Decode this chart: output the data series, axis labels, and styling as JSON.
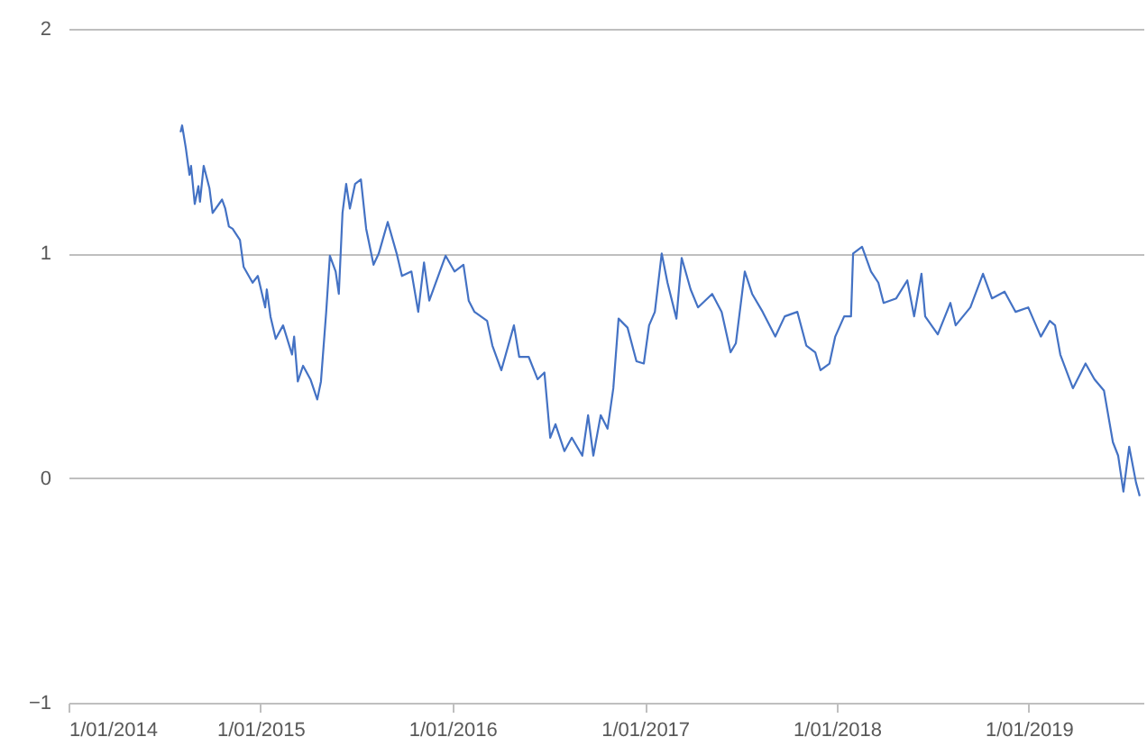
{
  "chart_data": {
    "type": "line",
    "x": [
      "2014-08-02",
      "2014-08-05",
      "2014-08-12",
      "2014-08-19",
      "2014-08-22",
      "2014-08-29",
      "2014-09-05",
      "2014-09-08",
      "2014-09-15",
      "2014-09-26",
      "2014-10-02",
      "2014-10-20",
      "2014-10-26",
      "2014-11-02",
      "2014-11-09",
      "2014-11-23",
      "2014-11-30",
      "2014-12-17",
      "2014-12-27",
      "2015-01-10",
      "2015-01-13",
      "2015-01-20",
      "2015-01-30",
      "2015-02-13",
      "2015-03-02",
      "2015-03-06",
      "2015-03-13",
      "2015-03-23",
      "2015-04-06",
      "2015-04-19",
      "2015-04-26",
      "2015-05-06",
      "2015-05-13",
      "2015-05-24",
      "2015-05-30",
      "2015-06-06",
      "2015-06-13",
      "2015-06-20",
      "2015-06-30",
      "2015-07-11",
      "2015-07-21",
      "2015-08-04",
      "2015-08-14",
      "2015-08-31",
      "2015-09-17",
      "2015-09-27",
      "2015-10-15",
      "2015-10-28",
      "2015-11-08",
      "2015-11-18",
      "2015-12-05",
      "2015-12-19",
      "2016-01-05",
      "2016-01-22",
      "2016-02-01",
      "2016-02-12",
      "2016-03-07",
      "2016-03-17",
      "2016-04-03",
      "2016-04-27",
      "2016-05-07",
      "2016-05-25",
      "2016-06-11",
      "2016-06-24",
      "2016-07-05",
      "2016-07-15",
      "2016-08-01",
      "2016-08-15",
      "2016-09-04",
      "2016-09-15",
      "2016-09-25",
      "2016-10-09",
      "2016-10-22",
      "2016-11-02",
      "2016-11-12",
      "2016-11-29",
      "2016-12-16",
      "2016-12-30",
      "2017-01-09",
      "2017-01-20",
      "2017-02-02",
      "2017-02-13",
      "2017-03-02",
      "2017-03-12",
      "2017-03-29",
      "2017-04-12",
      "2017-05-09",
      "2017-05-27",
      "2017-06-13",
      "2017-06-23",
      "2017-07-10",
      "2017-07-24",
      "2017-08-13",
      "2017-09-06",
      "2017-09-24",
      "2017-10-18",
      "2017-11-04",
      "2017-11-21",
      "2017-12-01",
      "2017-12-18",
      "2017-12-29",
      "2018-01-15",
      "2018-01-28",
      "2018-02-01",
      "2018-02-18",
      "2018-03-07",
      "2018-03-21",
      "2018-03-31",
      "2018-04-24",
      "2018-05-15",
      "2018-05-28",
      "2018-06-11",
      "2018-06-18",
      "2018-07-12",
      "2018-08-05",
      "2018-08-15",
      "2018-09-12",
      "2018-10-06",
      "2018-10-23",
      "2018-11-16",
      "2018-12-07",
      "2018-12-31",
      "2019-01-24",
      "2019-02-10",
      "2019-02-20",
      "2019-03-02",
      "2019-03-26",
      "2019-04-19",
      "2019-05-06",
      "2019-05-24",
      "2019-06-10",
      "2019-06-20",
      "2019-06-30",
      "2019-07-11",
      "2019-07-24",
      "2019-07-31"
    ],
    "series": [
      {
        "color": "#4472c4",
        "values": [
          1.54,
          1.57,
          1.47,
          1.35,
          1.39,
          1.22,
          1.3,
          1.23,
          1.39,
          1.29,
          1.18,
          1.24,
          1.2,
          1.12,
          1.11,
          1.06,
          0.94,
          0.87,
          0.9,
          0.76,
          0.84,
          0.72,
          0.62,
          0.68,
          0.55,
          0.63,
          0.43,
          0.5,
          0.44,
          0.35,
          0.43,
          0.74,
          0.99,
          0.92,
          0.82,
          1.18,
          1.31,
          1.2,
          1.31,
          1.33,
          1.11,
          0.95,
          1.0,
          1.14,
          1.0,
          0.9,
          0.92,
          0.74,
          0.96,
          0.79,
          0.9,
          0.99,
          0.92,
          0.95,
          0.79,
          0.74,
          0.7,
          0.59,
          0.48,
          0.68,
          0.54,
          0.54,
          0.44,
          0.47,
          0.18,
          0.24,
          0.12,
          0.18,
          0.1,
          0.28,
          0.1,
          0.28,
          0.22,
          0.4,
          0.71,
          0.67,
          0.52,
          0.51,
          0.68,
          0.74,
          1.0,
          0.87,
          0.71,
          0.98,
          0.84,
          0.76,
          0.82,
          0.74,
          0.56,
          0.6,
          0.92,
          0.82,
          0.74,
          0.63,
          0.72,
          0.74,
          0.59,
          0.56,
          0.48,
          0.51,
          0.63,
          0.72,
          0.72,
          1.0,
          1.03,
          0.92,
          0.87,
          0.78,
          0.8,
          0.88,
          0.72,
          0.91,
          0.72,
          0.64,
          0.78,
          0.68,
          0.76,
          0.91,
          0.8,
          0.83,
          0.74,
          0.76,
          0.63,
          0.7,
          0.68,
          0.55,
          0.4,
          0.51,
          0.44,
          0.39,
          0.16,
          0.1,
          -0.06,
          0.14,
          -0.02,
          -0.08
        ]
      }
    ],
    "xlim": [
      "2014-01-01",
      "2019-08-07"
    ],
    "xticks": [
      {
        "value": "2014-01-01",
        "label": "1/01/2014"
      },
      {
        "value": "2015-01-01",
        "label": "1/01/2015"
      },
      {
        "value": "2016-01-01",
        "label": "1/01/2016"
      },
      {
        "value": "2017-01-01",
        "label": "1/01/2017"
      },
      {
        "value": "2018-01-01",
        "label": "1/01/2018"
      },
      {
        "value": "2019-01-01",
        "label": "1/01/2019"
      }
    ],
    "ylim": [
      -1,
      2
    ],
    "yticks": [
      -1,
      0,
      1,
      2
    ],
    "grid": "y"
  }
}
